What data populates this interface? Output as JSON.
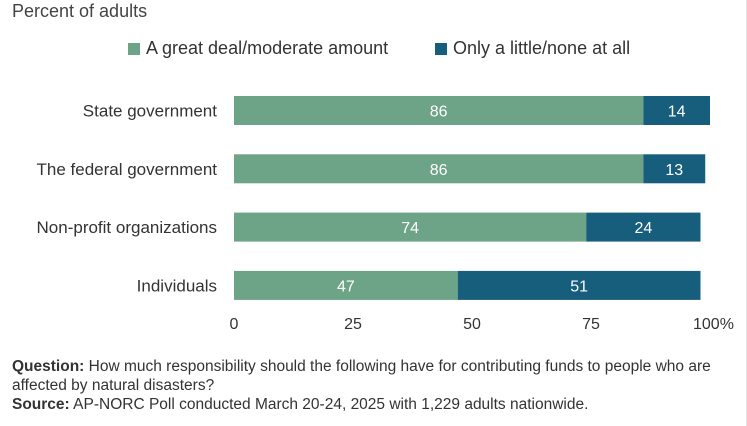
{
  "subtitle": "Percent of adults",
  "colors": {
    "series1": "#6da386",
    "series2": "#175d7c"
  },
  "chart_data": {
    "type": "bar",
    "orientation": "horizontal",
    "stacked": true,
    "title": "",
    "subtitle": "Percent of adults",
    "categories": [
      "State government",
      "The federal government",
      "Non-profit organizations",
      "Individuals"
    ],
    "series": [
      {
        "name": "A great deal/moderate amount",
        "values": [
          86,
          86,
          74,
          47
        ],
        "color": "#6da386"
      },
      {
        "name": "Only a little/none at all",
        "values": [
          14,
          13,
          24,
          51
        ],
        "color": "#175d7c"
      }
    ],
    "xlim": [
      0,
      100
    ],
    "xticks": [
      "0",
      "25",
      "50",
      "75",
      "100%"
    ],
    "legend_position": "top",
    "grid": false
  },
  "footnote": {
    "question_label": "Question:",
    "question_text": " How much responsibility should the following have for contributing funds to people who are affected by natural disasters?",
    "source_label": "Source:",
    "source_text": " AP-NORC Poll conducted March 20-24, 2025 with 1,229 adults nationwide."
  }
}
